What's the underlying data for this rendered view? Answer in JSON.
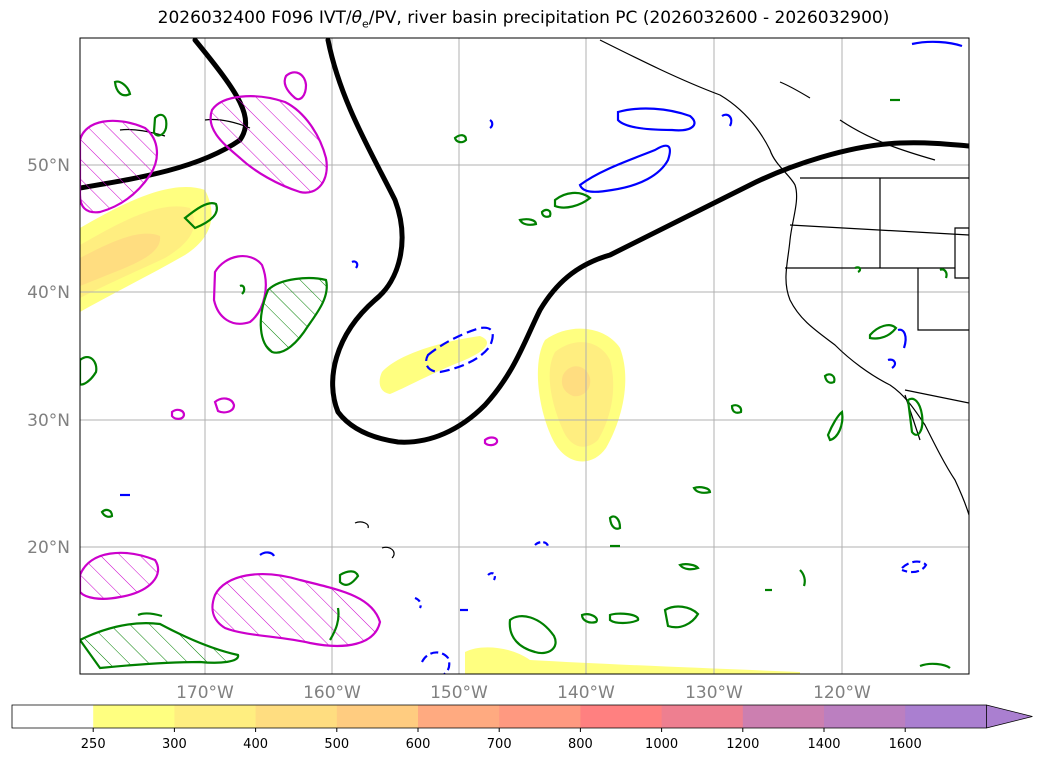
{
  "title": {
    "prefix": "2026032400 F096 IVT/",
    "theta": "θ",
    "sub": "e",
    "suffix": "/PV, river basin precipitation PC (2026032600 - 2026032900)"
  },
  "axes": {
    "lat_labels": [
      "50°N",
      "40°N",
      "30°N",
      "20°N"
    ],
    "lon_labels": [
      "170°W",
      "160°W",
      "150°W",
      "140°W",
      "130°W",
      "120°W"
    ]
  },
  "colorbar": {
    "ticks": [
      "250",
      "300",
      "400",
      "500",
      "600",
      "700",
      "800",
      "1000",
      "1200",
      "1400",
      "1600"
    ],
    "colors": [
      "#ffffff",
      "#ffff80",
      "#ffee80",
      "#ffdd80",
      "#ffcc80",
      "#ffaa80",
      "#ff9980",
      "#ff8080",
      "#ee7f90",
      "#cc7fb0",
      "#bb7fc0",
      "#aa7fd0"
    ],
    "extend": "max"
  },
  "layers": {
    "ivt_fill_colors": [
      "#ffff80",
      "#ffee80",
      "#ffdd80",
      "#ffcc80"
    ],
    "pv_contour_color": "#000000",
    "theta_e_warm_color": "#cc00cc",
    "theta_e_cold_color": "#0000ff",
    "precip_contour_color": "#008000"
  }
}
